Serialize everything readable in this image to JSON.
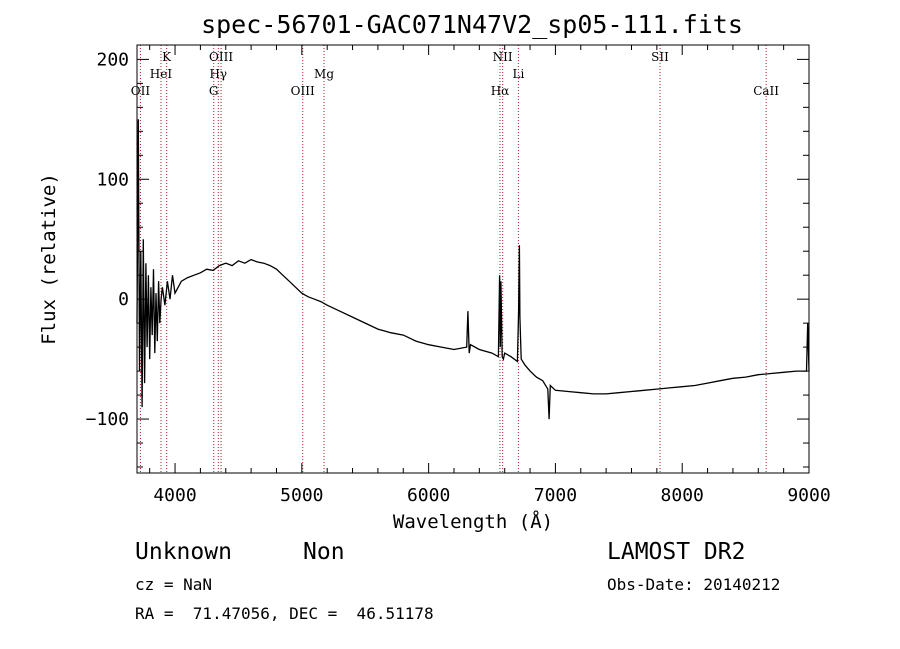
{
  "chart_data": {
    "type": "line",
    "title": "spec-56701-GAC071N47V2_sp05-111.fits",
    "xlabel": "Wavelength (Å)",
    "ylabel": "Flux (relative)",
    "xlim": [
      3700,
      9000
    ],
    "ylim": [
      -145,
      212
    ],
    "x_ticks": [
      4000,
      5000,
      6000,
      7000,
      8000,
      9000
    ],
    "y_ticks": [
      -100,
      0,
      100,
      200
    ],
    "line_color": "#000000",
    "marker_color": "#b02020",
    "series": [
      {
        "name": "spectrum",
        "x": [
          3700,
          3710,
          3720,
          3730,
          3740,
          3750,
          3760,
          3770,
          3780,
          3790,
          3800,
          3810,
          3820,
          3830,
          3840,
          3850,
          3860,
          3870,
          3880,
          3890,
          3900,
          3920,
          3940,
          3960,
          3980,
          4000,
          4050,
          4100,
          4150,
          4200,
          4250,
          4300,
          4350,
          4400,
          4450,
          4500,
          4550,
          4600,
          4650,
          4700,
          4750,
          4800,
          4850,
          4900,
          4950,
          5000,
          5050,
          5100,
          5150,
          5200,
          5300,
          5400,
          5500,
          5600,
          5700,
          5800,
          5900,
          6000,
          6100,
          6200,
          6300,
          6310,
          6320,
          6330,
          6400,
          6500,
          6550,
          6560,
          6565,
          6570,
          6580,
          6590,
          6600,
          6650,
          6700,
          6710,
          6716,
          6720,
          6730,
          6760,
          6800,
          6850,
          6900,
          6940,
          6950,
          6960,
          7000,
          7100,
          7200,
          7300,
          7400,
          7500,
          7600,
          7700,
          7800,
          7900,
          8000,
          8100,
          8200,
          8300,
          8400,
          8500,
          8600,
          8700,
          8800,
          8900,
          8980,
          8990,
          9000
        ],
        "y": [
          -20,
          150,
          -60,
          40,
          -90,
          50,
          -70,
          30,
          -40,
          20,
          -50,
          10,
          -30,
          25,
          -45,
          5,
          -35,
          15,
          -20,
          0,
          10,
          -5,
          15,
          0,
          20,
          5,
          15,
          18,
          20,
          22,
          25,
          24,
          28,
          30,
          28,
          32,
          30,
          33,
          31,
          30,
          28,
          25,
          20,
          15,
          10,
          5,
          2,
          0,
          -2,
          -5,
          -10,
          -15,
          -20,
          -25,
          -28,
          -30,
          -35,
          -38,
          -40,
          -42,
          -40,
          -10,
          -45,
          -38,
          -42,
          -45,
          -48,
          20,
          -40,
          15,
          -48,
          -50,
          -45,
          -48,
          -52,
          -10,
          45,
          -15,
          -50,
          -55,
          -60,
          -65,
          -68,
          -75,
          -100,
          -72,
          -76,
          -77,
          -78,
          -79,
          -79,
          -78,
          -77,
          -76,
          -75,
          -74,
          -73,
          -72,
          -70,
          -68,
          -66,
          -65,
          -63,
          -62,
          -61,
          -60,
          -60,
          -20,
          -60
        ]
      }
    ],
    "spectral_lines": [
      {
        "name": "OII",
        "wavelength": 3727,
        "row": 3
      },
      {
        "name": "HeI",
        "wavelength": 3889,
        "row": 2
      },
      {
        "name": "K",
        "wavelength": 3934,
        "row": 1
      },
      {
        "name": "G",
        "wavelength": 4305,
        "row": 3
      },
      {
        "name": "Hγ",
        "wavelength": 4341,
        "row": 2
      },
      {
        "name": "OIII",
        "wavelength": 4363,
        "row": 1
      },
      {
        "name": "OIII",
        "wavelength": 5007,
        "row": 3
      },
      {
        "name": "Mg",
        "wavelength": 5175,
        "row": 2
      },
      {
        "name": "Hα",
        "wavelength": 6563,
        "row": 3
      },
      {
        "name": "NII",
        "wavelength": 6584,
        "row": 1
      },
      {
        "name": "Li",
        "wavelength": 6708,
        "row": 2
      },
      {
        "name": "SII",
        "wavelength": 7825,
        "row": 1
      },
      {
        "name": "CaII",
        "wavelength": 8662,
        "row": 3
      }
    ]
  },
  "info": {
    "classification": "Unknown",
    "subclass": "Non",
    "survey": "LAMOST DR2",
    "cz": "cz = NaN",
    "obs_date": "Obs-Date: 20140212",
    "radec": "RA =  71.47056, DEC =  46.51178"
  }
}
